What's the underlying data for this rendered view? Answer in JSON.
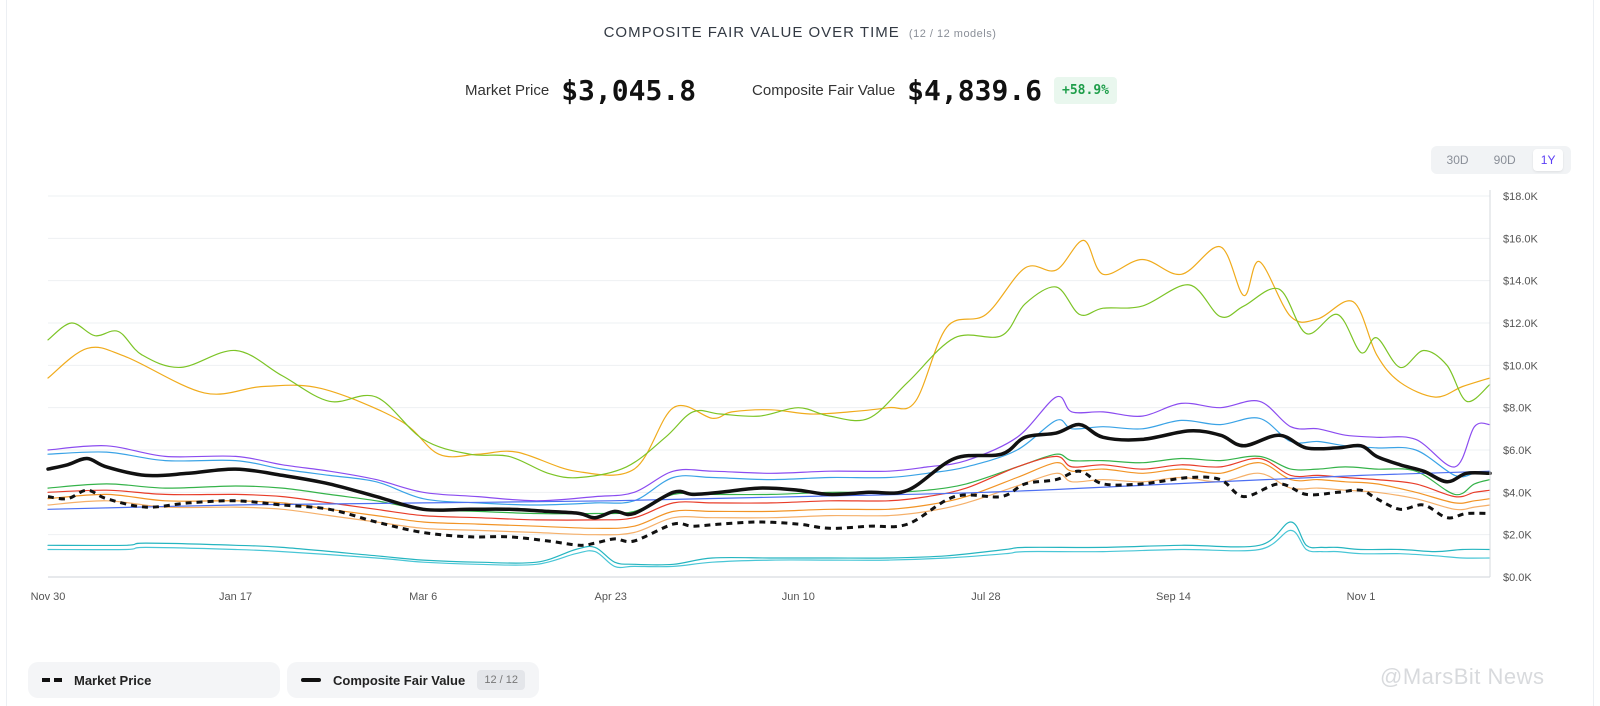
{
  "header": {
    "title": "COMPOSITE FAIR VALUE OVER TIME",
    "subtitle": "(12 / 12 models)"
  },
  "stats": {
    "market_price_label": "Market Price",
    "market_price_value": "$3,045.8",
    "cfv_label": "Composite Fair Value",
    "cfv_value": "$4,839.6",
    "delta": "+58.9%"
  },
  "range_selector": {
    "options": [
      "30D",
      "90D",
      "1Y"
    ],
    "active": "1Y"
  },
  "legend": {
    "market_price": "Market Price",
    "composite_fair_value": "Composite Fair Value",
    "model_count": "12 / 12"
  },
  "watermark": "@MarsBit News",
  "chart_data": {
    "type": "line",
    "x_tick_labels": [
      "Nov 30",
      "Jan 17",
      "Mar 6",
      "Apr 23",
      "Jun 10",
      "Jul 28",
      "Sep 14",
      "Nov 1"
    ],
    "y_tick_labels": [
      "$0.0K",
      "$2.0K",
      "$4.0K",
      "$6.0K",
      "$8.0K",
      "$10.0K",
      "$12.0K",
      "$14.0K",
      "$16.0K",
      "$18.0K"
    ],
    "ylim": [
      0,
      18000
    ],
    "x_ticks": [
      0,
      48,
      96,
      144,
      192,
      240,
      288,
      336
    ],
    "xlim": [
      0,
      369
    ],
    "grid": true,
    "colors": {
      "market_price": "#111111",
      "composite": "#111111",
      "orange_high": "#f0ab1c",
      "green_high": "#7cc426",
      "purple": "#8b4cf0",
      "sky": "#3aa3e6",
      "green": "#35b34a",
      "red": "#e83d2a",
      "orange": "#f29426",
      "amber": "#f5b06a",
      "blue": "#4d6ff2",
      "teal": "#25b5c0",
      "cyan": "#49c6d6",
      "deep_orange": "#ff7a2a"
    },
    "series": [
      {
        "key": "orange_high",
        "x": [
          0,
          10,
          20,
          40,
          55,
          70,
          90,
          100,
          110,
          120,
          135,
          150,
          160,
          170,
          175,
          185,
          195,
          205,
          215,
          222,
          230,
          240,
          250,
          258,
          265,
          270,
          280,
          290,
          300,
          306,
          310,
          318,
          325,
          334,
          340,
          346,
          355,
          362,
          369
        ],
        "y": [
          9400,
          10800,
          10400,
          8700,
          9000,
          8900,
          7400,
          5800,
          5800,
          5900,
          5000,
          5100,
          8000,
          7500,
          7800,
          7900,
          7700,
          7800,
          8000,
          8300,
          11800,
          12400,
          14600,
          14500,
          15900,
          14300,
          15000,
          14300,
          15600,
          13300,
          14900,
          12300,
          12200,
          13000,
          10500,
          9200,
          8500,
          9000,
          9400
        ]
      },
      {
        "key": "green_high",
        "x": [
          0,
          6,
          12,
          18,
          24,
          34,
          48,
          60,
          72,
          84,
          96,
          108,
          118,
          128,
          136,
          148,
          158,
          165,
          172,
          182,
          192,
          200,
          210,
          220,
          232,
          244,
          250,
          258,
          264,
          270,
          280,
          292,
          300,
          306,
          315,
          322,
          330,
          336,
          340,
          346,
          352,
          358,
          363,
          369
        ],
        "y": [
          11200,
          12000,
          11400,
          11600,
          10500,
          9900,
          10700,
          9500,
          8300,
          8500,
          6500,
          5800,
          5700,
          4900,
          4700,
          5200,
          6600,
          7800,
          7700,
          7600,
          8000,
          7600,
          7500,
          9200,
          11300,
          11400,
          12900,
          13700,
          12400,
          12700,
          12800,
          13800,
          12300,
          12800,
          13600,
          11500,
          12400,
          10600,
          11300,
          9900,
          10700,
          10000,
          8300,
          9100
        ]
      },
      {
        "key": "purple",
        "x": [
          0,
          15,
          30,
          48,
          60,
          72,
          84,
          96,
          110,
          125,
          140,
          150,
          160,
          170,
          185,
          200,
          215,
          225,
          235,
          248,
          258,
          262,
          270,
          280,
          290,
          300,
          310,
          318,
          325,
          332,
          340,
          350,
          360,
          365,
          369
        ],
        "y": [
          6000,
          6200,
          5700,
          5700,
          5300,
          5000,
          4600,
          4000,
          3800,
          3600,
          3800,
          4000,
          5000,
          5000,
          4900,
          5000,
          5000,
          5200,
          5500,
          6600,
          8500,
          7800,
          7800,
          7600,
          8200,
          8000,
          8300,
          7100,
          7000,
          6700,
          6600,
          6500,
          5200,
          7100,
          7200
        ]
      },
      {
        "key": "sky",
        "x": [
          0,
          15,
          30,
          48,
          60,
          72,
          84,
          96,
          110,
          125,
          140,
          150,
          160,
          170,
          185,
          200,
          215,
          225,
          235,
          248,
          258,
          262,
          270,
          280,
          290,
          300,
          310,
          318,
          325,
          332,
          340,
          350,
          360,
          365,
          369
        ],
        "y": [
          5800,
          5900,
          5500,
          5500,
          5100,
          4800,
          4500,
          3700,
          3500,
          3400,
          3500,
          3600,
          4700,
          4700,
          4600,
          4700,
          4700,
          4900,
          5200,
          6000,
          7400,
          7000,
          7100,
          7000,
          7400,
          7200,
          7500,
          6400,
          6400,
          6200,
          6100,
          6000,
          4800,
          4900,
          5000
        ]
      },
      {
        "key": "green",
        "x": [
          0,
          15,
          30,
          48,
          60,
          72,
          84,
          96,
          110,
          125,
          140,
          150,
          160,
          170,
          185,
          200,
          215,
          225,
          235,
          248,
          258,
          262,
          270,
          280,
          290,
          300,
          310,
          318,
          325,
          332,
          340,
          350,
          360,
          365,
          369
        ],
        "y": [
          4200,
          4400,
          4200,
          4300,
          4200,
          3900,
          3600,
          3200,
          3100,
          3000,
          3000,
          3100,
          3900,
          3900,
          3900,
          4000,
          4000,
          4100,
          4400,
          5200,
          5800,
          5500,
          5500,
          5400,
          5600,
          5500,
          5700,
          5100,
          5100,
          5200,
          5100,
          5000,
          3900,
          4400,
          4600
        ]
      },
      {
        "key": "red",
        "x": [
          0,
          15,
          30,
          48,
          60,
          72,
          84,
          96,
          110,
          125,
          140,
          150,
          160,
          170,
          185,
          200,
          215,
          225,
          235,
          248,
          258,
          262,
          270,
          280,
          290,
          300,
          310,
          318,
          325,
          332,
          340,
          350,
          360,
          365,
          369
        ],
        "y": [
          4000,
          4100,
          3900,
          3900,
          3800,
          3500,
          3200,
          2900,
          2800,
          2700,
          2700,
          2800,
          3500,
          3500,
          3500,
          3600,
          3600,
          3800,
          4200,
          5200,
          5700,
          5200,
          5300,
          5100,
          5300,
          5200,
          5600,
          4800,
          4800,
          4700,
          4600,
          4400,
          3800,
          4000,
          4100
        ]
      },
      {
        "key": "orange",
        "x": [
          0,
          15,
          30,
          48,
          60,
          72,
          84,
          96,
          110,
          125,
          140,
          150,
          160,
          170,
          185,
          200,
          215,
          225,
          235,
          248,
          258,
          262,
          270,
          280,
          290,
          300,
          310,
          318,
          325,
          332,
          340,
          350,
          360,
          365,
          369
        ],
        "y": [
          3700,
          3900,
          3600,
          3600,
          3500,
          3200,
          2900,
          2600,
          2500,
          2400,
          2300,
          2400,
          3100,
          3100,
          3100,
          3200,
          3200,
          3400,
          3800,
          4700,
          5400,
          5000,
          5100,
          4900,
          5100,
          4900,
          5400,
          4600,
          4600,
          4500,
          4400,
          4000,
          3500,
          3600,
          3700
        ]
      },
      {
        "key": "amber",
        "x": [
          0,
          15,
          30,
          48,
          60,
          72,
          84,
          96,
          110,
          125,
          140,
          150,
          160,
          170,
          185,
          200,
          215,
          225,
          235,
          248,
          258,
          262,
          270,
          280,
          290,
          300,
          310,
          318,
          325,
          332,
          340,
          350,
          360,
          365,
          369
        ],
        "y": [
          3400,
          3600,
          3300,
          3300,
          3200,
          2900,
          2600,
          2300,
          2200,
          2100,
          2000,
          2100,
          2800,
          2800,
          2800,
          2900,
          2900,
          3100,
          3500,
          4300,
          4900,
          4500,
          4600,
          4500,
          4700,
          4500,
          4900,
          4200,
          4200,
          4100,
          4000,
          3700,
          3200,
          3300,
          3400
        ]
      },
      {
        "key": "blue",
        "x": [
          0,
          48,
          96,
          144,
          192,
          240,
          288,
          336,
          369
        ],
        "y": [
          3200,
          3400,
          3500,
          3600,
          3800,
          4000,
          4400,
          4800,
          5000
        ]
      },
      {
        "key": "teal",
        "x": [
          0,
          20,
          25,
          48,
          60,
          84,
          96,
          110,
          125,
          135,
          140,
          145,
          150,
          160,
          170,
          185,
          200,
          215,
          230,
          245,
          250,
          270,
          290,
          310,
          318,
          322,
          326,
          330,
          336,
          346,
          355,
          362,
          369
        ],
        "y": [
          1500,
          1500,
          1600,
          1500,
          1400,
          1000,
          800,
          700,
          700,
          1300,
          1400,
          700,
          600,
          600,
          900,
          900,
          900,
          900,
          1000,
          1300,
          1400,
          1400,
          1500,
          1500,
          2600,
          1500,
          1400,
          1400,
          1300,
          1300,
          1200,
          1300,
          1300
        ]
      },
      {
        "key": "cyan",
        "x": [
          0,
          20,
          25,
          48,
          60,
          84,
          96,
          110,
          125,
          135,
          140,
          145,
          150,
          160,
          170,
          185,
          200,
          215,
          230,
          245,
          250,
          270,
          290,
          310,
          318,
          322,
          326,
          330,
          336,
          346,
          355,
          362,
          369
        ],
        "y": [
          1300,
          1300,
          1400,
          1300,
          1200,
          900,
          700,
          600,
          600,
          1100,
          1200,
          500,
          500,
          500,
          700,
          800,
          800,
          800,
          900,
          1100,
          1200,
          1200,
          1300,
          1300,
          2200,
          1300,
          1200,
          1200,
          1100,
          1100,
          1000,
          900,
          900
        ]
      },
      {
        "key": "composite",
        "x": [
          0,
          5,
          10,
          15,
          25,
          36,
          48,
          60,
          72,
          84,
          96,
          108,
          118,
          128,
          136,
          140,
          145,
          150,
          160,
          165,
          172,
          182,
          192,
          200,
          210,
          220,
          232,
          244,
          250,
          258,
          264,
          270,
          280,
          292,
          300,
          306,
          315,
          322,
          330,
          336,
          340,
          346,
          352,
          358,
          363,
          369
        ],
        "y": [
          5100,
          5300,
          5600,
          5200,
          4800,
          4900,
          5100,
          4800,
          4400,
          3800,
          3200,
          3200,
          3200,
          3100,
          3000,
          2800,
          3100,
          3000,
          4000,
          3900,
          4000,
          4200,
          4100,
          3900,
          4000,
          4100,
          5600,
          5800,
          6600,
          6800,
          7200,
          6600,
          6500,
          6900,
          6700,
          6200,
          6700,
          6100,
          6100,
          6200,
          5700,
          5300,
          5000,
          4500,
          4900,
          4900
        ]
      },
      {
        "key": "market_price",
        "x": [
          0,
          5,
          10,
          15,
          25,
          36,
          48,
          60,
          72,
          84,
          96,
          108,
          118,
          128,
          136,
          140,
          145,
          150,
          160,
          165,
          172,
          182,
          192,
          200,
          210,
          220,
          232,
          244,
          250,
          258,
          264,
          270,
          280,
          292,
          300,
          306,
          315,
          322,
          330,
          336,
          340,
          346,
          352,
          358,
          363,
          369
        ],
        "y": [
          3800,
          3700,
          4100,
          3700,
          3300,
          3500,
          3600,
          3400,
          3200,
          2600,
          2100,
          1900,
          1900,
          1700,
          1500,
          1600,
          1800,
          1700,
          2500,
          2400,
          2500,
          2600,
          2500,
          2300,
          2400,
          2500,
          3800,
          3800,
          4400,
          4600,
          5000,
          4400,
          4400,
          4700,
          4600,
          3800,
          4400,
          3900,
          4000,
          4100,
          3700,
          3200,
          3400,
          2800,
          3000,
          3000
        ]
      }
    ]
  }
}
